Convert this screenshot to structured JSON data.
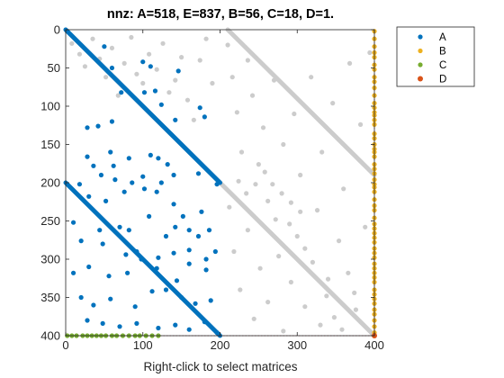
{
  "chart_data": {
    "type": "scatter",
    "title": "nnz: A=518, E=837, B=56, C=18, D=1.",
    "xlabel": "Right-click to select matrices",
    "ylabel": "",
    "xlim": [
      0,
      400
    ],
    "ylim": [
      400,
      0
    ],
    "y_axis_reversed": true,
    "x_ticks": [
      "0",
      "100",
      "200",
      "300",
      "400"
    ],
    "y_ticks": [
      "0",
      "50",
      "100",
      "150",
      "200",
      "250",
      "300",
      "350",
      "400"
    ],
    "x_tick_values": [
      0,
      100,
      200,
      300,
      400
    ],
    "y_tick_values": [
      0,
      50,
      100,
      150,
      200,
      250,
      300,
      350,
      400
    ],
    "grid": false,
    "legend_position": "top-right-outside",
    "series": [
      {
        "name": "E",
        "color": "#cccccc",
        "lines": [
          {
            "from": [
              0,
              0
            ],
            "to": [
              200,
              200
            ]
          },
          {
            "from": [
              200,
              200
            ],
            "to": [
              400,
              400
            ]
          },
          {
            "from": [
              210,
              0
            ],
            "to": [
              400,
              190
            ]
          }
        ],
        "points": [
          [
            8,
            18
          ],
          [
            18,
            32
          ],
          [
            25,
            48
          ],
          [
            35,
            12
          ],
          [
            44,
            38
          ],
          [
            52,
            62
          ],
          [
            60,
            24
          ],
          [
            68,
            86
          ],
          [
            76,
            44
          ],
          [
            85,
            10
          ],
          [
            92,
            58
          ],
          [
            100,
            70
          ],
          [
            108,
            32
          ],
          [
            118,
            52
          ],
          [
            126,
            18
          ],
          [
            134,
            82
          ],
          [
            142,
            66
          ],
          [
            150,
            36
          ],
          [
            158,
            92
          ],
          [
            166,
            118
          ],
          [
            174,
            40
          ],
          [
            182,
            12
          ],
          [
            190,
            70
          ],
          [
            210,
            20
          ],
          [
            216,
            62
          ],
          [
            222,
            108
          ],
          [
            228,
            160
          ],
          [
            236,
            40
          ],
          [
            242,
            86
          ],
          [
            250,
            176
          ],
          [
            256,
            128
          ],
          [
            262,
            224
          ],
          [
            270,
            66
          ],
          [
            276,
            296
          ],
          [
            282,
            150
          ],
          [
            290,
            254
          ],
          [
            296,
            110
          ],
          [
            304,
            190
          ],
          [
            310,
            286
          ],
          [
            318,
            62
          ],
          [
            326,
            236
          ],
          [
            332,
            160
          ],
          [
            340,
            326
          ],
          [
            346,
            96
          ],
          [
            354,
            276
          ],
          [
            360,
            208
          ],
          [
            368,
            44
          ],
          [
            374,
            344
          ],
          [
            382,
            124
          ],
          [
            388,
            258
          ],
          [
            394,
            30
          ],
          [
            212,
            232
          ],
          [
            218,
            290
          ],
          [
            226,
            340
          ],
          [
            236,
            262
          ],
          [
            244,
            378
          ],
          [
            252,
            312
          ],
          [
            262,
            356
          ],
          [
            272,
            248
          ],
          [
            282,
            394
          ],
          [
            292,
            330
          ],
          [
            300,
            270
          ],
          [
            310,
            362
          ],
          [
            320,
            304
          ],
          [
            330,
            386
          ],
          [
            338,
            348
          ],
          [
            348,
            376
          ],
          [
            358,
            392
          ],
          [
            366,
            318
          ],
          [
            376,
            366
          ],
          [
            224,
            198
          ],
          [
            234,
            214
          ],
          [
            246,
            202
          ],
          [
            258,
            186
          ],
          [
            268,
            202
          ],
          [
            280,
            214
          ],
          [
            292,
            226
          ],
          [
            304,
            238
          ]
        ]
      },
      {
        "name": "A",
        "color": "#0072bd",
        "lines": [
          {
            "from": [
              0,
              0
            ],
            "to": [
              200,
              200
            ]
          },
          {
            "from": [
              0,
              200
            ],
            "to": [
              200,
              400
            ]
          }
        ],
        "points": [
          [
            50,
            22
          ],
          [
            60,
            50
          ],
          [
            72,
            82
          ],
          [
            100,
            42
          ],
          [
            102,
            82
          ],
          [
            110,
            48
          ],
          [
            116,
            80
          ],
          [
            124,
            98
          ],
          [
            146,
            54
          ],
          [
            174,
            102
          ],
          [
            180,
            114
          ],
          [
            142,
            118
          ],
          [
            28,
            128
          ],
          [
            42,
            126
          ],
          [
            60,
            120
          ],
          [
            28,
            166
          ],
          [
            58,
            160
          ],
          [
            82,
            168
          ],
          [
            110,
            164
          ],
          [
            120,
            168
          ],
          [
            132,
            176
          ],
          [
            140,
            190
          ],
          [
            172,
            188
          ],
          [
            100,
            192
          ],
          [
            62,
            178
          ],
          [
            36,
            178
          ],
          [
            46,
            190
          ],
          [
            64,
            196
          ],
          [
            86,
            200
          ],
          [
            124,
            200
          ],
          [
            18,
            202
          ],
          [
            30,
            218
          ],
          [
            52,
            224
          ],
          [
            76,
            212
          ],
          [
            102,
            208
          ],
          [
            118,
            212
          ],
          [
            140,
            228
          ],
          [
            152,
            244
          ],
          [
            176,
            238
          ],
          [
            196,
            202
          ],
          [
            10,
            252
          ],
          [
            44,
            262
          ],
          [
            70,
            258
          ],
          [
            82,
            262
          ],
          [
            108,
            244
          ],
          [
            130,
            270
          ],
          [
            142,
            258
          ],
          [
            160,
            262
          ],
          [
            172,
            270
          ],
          [
            186,
            262
          ],
          [
            20,
            276
          ],
          [
            48,
            280
          ],
          [
            78,
            294
          ],
          [
            92,
            290
          ],
          [
            120,
            298
          ],
          [
            140,
            292
          ],
          [
            160,
            288
          ],
          [
            182,
            300
          ],
          [
            194,
            290
          ],
          [
            10,
            318
          ],
          [
            30,
            310
          ],
          [
            56,
            322
          ],
          [
            80,
            318
          ],
          [
            98,
            300
          ],
          [
            118,
            312
          ],
          [
            144,
            328
          ],
          [
            160,
            306
          ],
          [
            182,
            314
          ],
          [
            20,
            350
          ],
          [
            36,
            360
          ],
          [
            58,
            352
          ],
          [
            90,
            362
          ],
          [
            112,
            342
          ],
          [
            130,
            340
          ],
          [
            150,
            350
          ],
          [
            168,
            358
          ],
          [
            188,
            354
          ],
          [
            28,
            380
          ],
          [
            48,
            384
          ],
          [
            70,
            388
          ],
          [
            92,
            384
          ],
          [
            120,
            390
          ],
          [
            142,
            386
          ],
          [
            160,
            392
          ],
          [
            180,
            382
          ],
          [
            196,
            396
          ]
        ]
      },
      {
        "name": "B",
        "color": "#edb120",
        "column_x": 400,
        "points_y": [
          2,
          12,
          22,
          30,
          36,
          46,
          52,
          62,
          68,
          76,
          86,
          96,
          102,
          108,
          112,
          118,
          124,
          136,
          142,
          150,
          156,
          160,
          166,
          176,
          182,
          188,
          196,
          202,
          206,
          212,
          222,
          230,
          236,
          246,
          254,
          260,
          266,
          272,
          278,
          286,
          292,
          298,
          306,
          312,
          318,
          324,
          330,
          340,
          346,
          352,
          358,
          366,
          372,
          380,
          388,
          396
        ]
      },
      {
        "name": "C",
        "color": "#77ac30",
        "row_y": 400,
        "points_x": [
          2,
          8,
          14,
          22,
          28,
          34,
          40,
          46,
          52,
          60,
          66,
          74,
          82,
          90,
          96,
          104,
          112,
          120
        ]
      },
      {
        "name": "D",
        "color": "#d95319",
        "points": [
          [
            400,
            400
          ]
        ]
      }
    ],
    "guide_lines": {
      "color": "#a2142f",
      "style": "dotted",
      "x": 400,
      "y": 400
    }
  }
}
